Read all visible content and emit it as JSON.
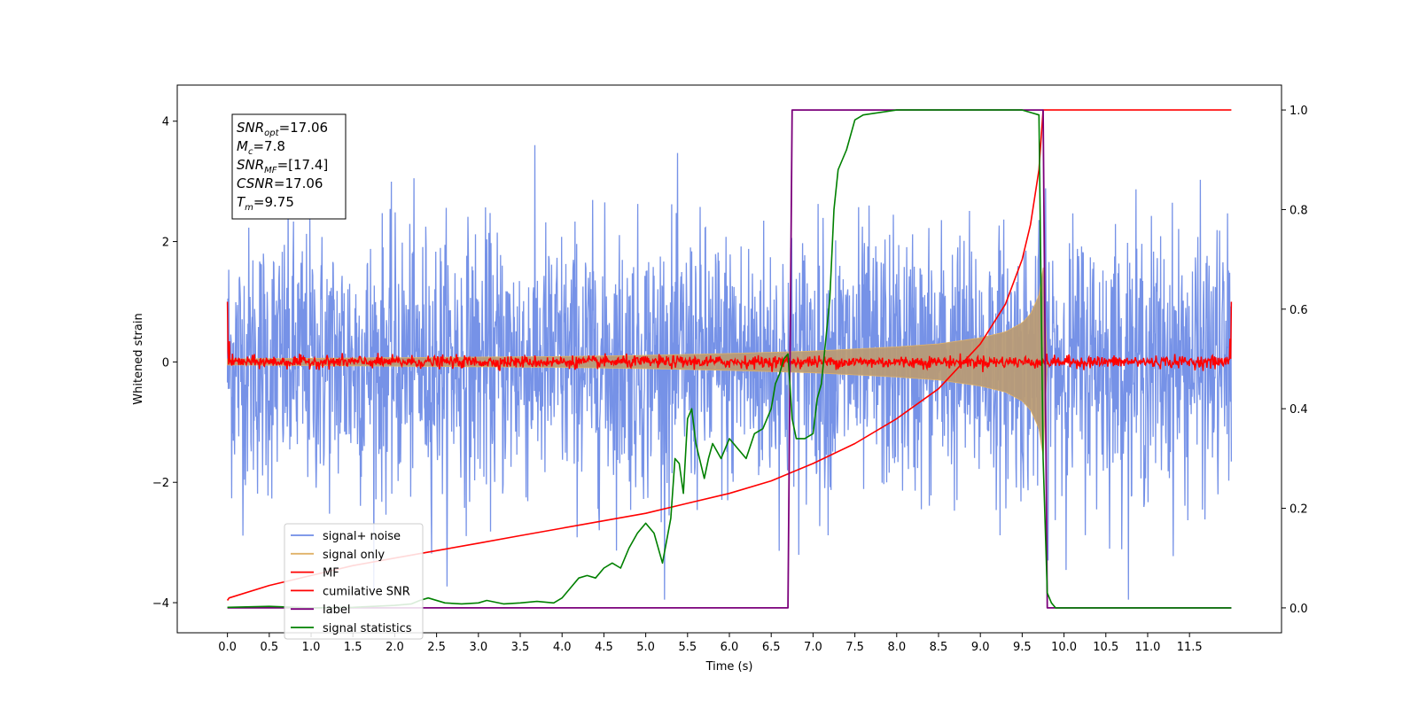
{
  "chart_data": {
    "type": "line",
    "title": "",
    "xlabel": "Time (s)",
    "ylabel": "Whitened strain",
    "xlim": [
      -0.6,
      12.6
    ],
    "ylim_left": [
      -4.5,
      4.6
    ],
    "ylim_right": [
      -0.05,
      1.05
    ],
    "x_ticks": [
      "0.0",
      "0.5",
      "1.0",
      "1.5",
      "2.0",
      "2.5",
      "3.0",
      "3.5",
      "4.0",
      "4.5",
      "5.0",
      "5.5",
      "6.0",
      "6.5",
      "7.0",
      "7.5",
      "8.0",
      "8.5",
      "9.0",
      "9.5",
      "10.0",
      "10.5",
      "11.0",
      "11.5"
    ],
    "y_ticks_left": [
      "4",
      "2",
      "0",
      "−2",
      "−4"
    ],
    "y_ticks_right": [
      "1.0",
      "0.8",
      "0.6",
      "0.4",
      "0.2",
      "0.0"
    ],
    "grid": false,
    "legend_placement": "lower-left",
    "colors": {
      "signal_noise": "#6f8ce6",
      "signal_only": "#e0b268",
      "mf": "#ff0000",
      "cumulative_snr": "#ff0000",
      "label": "#7b007b",
      "signal_statistics": "#008000"
    },
    "annotation": {
      "lines": [
        {
          "main": "SNR",
          "sub": "opt",
          "rest": "=17.06"
        },
        {
          "main": "M",
          "sub": "c",
          "rest": "=7.8"
        },
        {
          "main": "SNR",
          "sub": "MF",
          "rest": "=[17.4]"
        },
        {
          "main": "CSNR",
          "sub": "",
          "rest": "=17.06"
        },
        {
          "main": "T",
          "sub": "m",
          "rest": "=9.75"
        }
      ]
    },
    "series": [
      {
        "name": "signal+ noise",
        "axis": "left",
        "style": "noise",
        "x_range": [
          0,
          12
        ],
        "std": 1.1
      },
      {
        "name": "signal only",
        "axis": "left",
        "style": "chirp-envelope",
        "x": [
          0,
          1,
          2,
          3,
          4,
          5,
          6,
          7,
          8,
          8.5,
          9,
          9.3,
          9.5,
          9.6,
          9.7,
          9.75,
          9.8
        ],
        "amplitude": [
          0.05,
          0.06,
          0.07,
          0.08,
          0.09,
          0.11,
          0.14,
          0.18,
          0.25,
          0.3,
          0.4,
          0.5,
          0.65,
          0.8,
          1.1,
          1.6,
          0.0
        ]
      },
      {
        "name": "MF",
        "axis": "left",
        "style": "noise",
        "x_range": [
          0,
          12
        ],
        "std": 0.05
      },
      {
        "name": "cumilative SNR",
        "axis": "right",
        "x": [
          0,
          0.02,
          0.5,
          1,
          1.5,
          2,
          2.5,
          3,
          3.5,
          4,
          4.5,
          5,
          5.5,
          6,
          6.5,
          7,
          7.5,
          8,
          8.5,
          9,
          9.3,
          9.5,
          9.6,
          9.7,
          9.75,
          9.8,
          12
        ],
        "y": [
          0.015,
          0.02,
          0.045,
          0.065,
          0.085,
          0.1,
          0.115,
          0.13,
          0.145,
          0.16,
          0.175,
          0.19,
          0.21,
          0.23,
          0.255,
          0.29,
          0.33,
          0.38,
          0.44,
          0.53,
          0.61,
          0.7,
          0.77,
          0.88,
          1.0,
          1.0,
          1.0
        ]
      },
      {
        "name": "label",
        "axis": "right",
        "x": [
          0,
          6.7,
          6.75,
          9.75,
          9.8,
          12
        ],
        "y": [
          0,
          0,
          1,
          1,
          0,
          0
        ]
      },
      {
        "name": "signal statistics",
        "axis": "right",
        "x": [
          0,
          0.5,
          1,
          1.5,
          2,
          2.2,
          2.3,
          2.4,
          2.6,
          2.8,
          3,
          3.1,
          3.3,
          3.5,
          3.7,
          3.9,
          4,
          4.1,
          4.2,
          4.3,
          4.4,
          4.5,
          4.6,
          4.7,
          4.8,
          4.9,
          5,
          5.1,
          5.2,
          5.3,
          5.35,
          5.4,
          5.45,
          5.5,
          5.55,
          5.6,
          5.7,
          5.75,
          5.8,
          5.9,
          6,
          6.1,
          6.2,
          6.3,
          6.4,
          6.5,
          6.55,
          6.6,
          6.65,
          6.7,
          6.75,
          6.8,
          6.9,
          7,
          7.05,
          7.1,
          7.2,
          7.25,
          7.3,
          7.4,
          7.5,
          7.6,
          8,
          8.5,
          9,
          9.5,
          9.7,
          9.75,
          9.8,
          9.85,
          9.9,
          10,
          12
        ],
        "y": [
          0.001,
          0.003,
          0.0,
          0.001,
          0.005,
          0.008,
          0.015,
          0.02,
          0.01,
          0.008,
          0.01,
          0.015,
          0.008,
          0.01,
          0.013,
          0.01,
          0.02,
          0.04,
          0.06,
          0.065,
          0.06,
          0.08,
          0.09,
          0.08,
          0.12,
          0.15,
          0.17,
          0.15,
          0.09,
          0.18,
          0.3,
          0.29,
          0.23,
          0.38,
          0.4,
          0.33,
          0.26,
          0.3,
          0.33,
          0.3,
          0.34,
          0.32,
          0.3,
          0.35,
          0.36,
          0.4,
          0.45,
          0.47,
          0.5,
          0.51,
          0.38,
          0.34,
          0.34,
          0.35,
          0.42,
          0.45,
          0.62,
          0.8,
          0.88,
          0.92,
          0.98,
          0.99,
          1.0,
          1.0,
          1.0,
          1.0,
          0.99,
          0.3,
          0.03,
          0.01,
          0.0,
          0.0,
          0.0
        ]
      }
    ]
  }
}
